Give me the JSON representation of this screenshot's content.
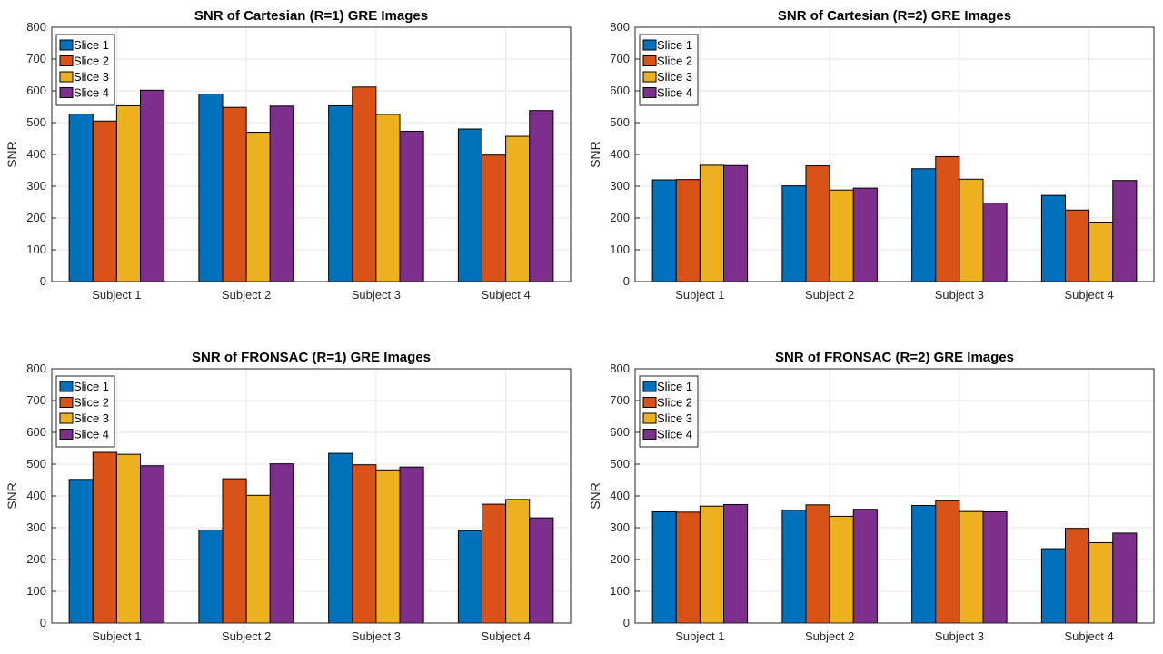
{
  "chart_data": [
    {
      "type": "bar",
      "title": "SNR of Cartesian (R=1) GRE Images",
      "xlabel": "",
      "ylabel": "SNR",
      "ylim": [
        0,
        800
      ],
      "yticks": [
        0,
        100,
        200,
        300,
        400,
        500,
        600,
        700,
        800
      ],
      "grid": true,
      "legend_position": "top-left",
      "categories": [
        "Subject 1",
        "Subject 2",
        "Subject 3",
        "Subject 4"
      ],
      "series": [
        {
          "name": "Slice 1",
          "color": "#0072BD",
          "values": [
            527,
            590,
            553,
            480
          ]
        },
        {
          "name": "Slice 2",
          "color": "#D95319",
          "values": [
            505,
            548,
            612,
            398
          ]
        },
        {
          "name": "Slice 3",
          "color": "#EDB120",
          "values": [
            553,
            470,
            526,
            457
          ]
        },
        {
          "name": "Slice 4",
          "color": "#7E2F8E",
          "values": [
            602,
            552,
            473,
            538
          ]
        }
      ]
    },
    {
      "type": "bar",
      "title": "SNR of Cartesian (R=2) GRE Images",
      "xlabel": "",
      "ylabel": "SNR",
      "ylim": [
        0,
        800
      ],
      "yticks": [
        0,
        100,
        200,
        300,
        400,
        500,
        600,
        700,
        800
      ],
      "grid": true,
      "legend_position": "top-left",
      "categories": [
        "Subject 1",
        "Subject 2",
        "Subject 3",
        "Subject 4"
      ],
      "series": [
        {
          "name": "Slice 1",
          "color": "#0072BD",
          "values": [
            320,
            301,
            355,
            271
          ]
        },
        {
          "name": "Slice 2",
          "color": "#D95319",
          "values": [
            321,
            364,
            393,
            225
          ]
        },
        {
          "name": "Slice 3",
          "color": "#EDB120",
          "values": [
            366,
            288,
            322,
            187
          ]
        },
        {
          "name": "Slice 4",
          "color": "#7E2F8E",
          "values": [
            365,
            294,
            247,
            318
          ]
        }
      ]
    },
    {
      "type": "bar",
      "title": "SNR of FRONSAC (R=1) GRE Images",
      "xlabel": "",
      "ylabel": "SNR",
      "ylim": [
        0,
        800
      ],
      "yticks": [
        0,
        100,
        200,
        300,
        400,
        500,
        600,
        700,
        800
      ],
      "grid": true,
      "legend_position": "top-left",
      "categories": [
        "Subject 1",
        "Subject 2",
        "Subject 3",
        "Subject 4"
      ],
      "series": [
        {
          "name": "Slice 1",
          "color": "#0072BD",
          "values": [
            452,
            293,
            534,
            291
          ]
        },
        {
          "name": "Slice 2",
          "color": "#D95319",
          "values": [
            537,
            454,
            498,
            374
          ]
        },
        {
          "name": "Slice 3",
          "color": "#EDB120",
          "values": [
            531,
            402,
            482,
            389
          ]
        },
        {
          "name": "Slice 4",
          "color": "#7E2F8E",
          "values": [
            495,
            501,
            491,
            331
          ]
        }
      ]
    },
    {
      "type": "bar",
      "title": "SNR of FRONSAC (R=2) GRE Images",
      "xlabel": "",
      "ylabel": "SNR",
      "ylim": [
        0,
        800
      ],
      "yticks": [
        0,
        100,
        200,
        300,
        400,
        500,
        600,
        700,
        800
      ],
      "grid": true,
      "legend_position": "top-left",
      "categories": [
        "Subject 1",
        "Subject 2",
        "Subject 3",
        "Subject 4"
      ],
      "series": [
        {
          "name": "Slice 1",
          "color": "#0072BD",
          "values": [
            350,
            355,
            370,
            234
          ]
        },
        {
          "name": "Slice 2",
          "color": "#D95319",
          "values": [
            349,
            372,
            385,
            298
          ]
        },
        {
          "name": "Slice 3",
          "color": "#EDB120",
          "values": [
            368,
            336,
            351,
            253
          ]
        },
        {
          "name": "Slice 4",
          "color": "#7E2F8E",
          "values": [
            373,
            358,
            350,
            283
          ]
        }
      ]
    }
  ]
}
